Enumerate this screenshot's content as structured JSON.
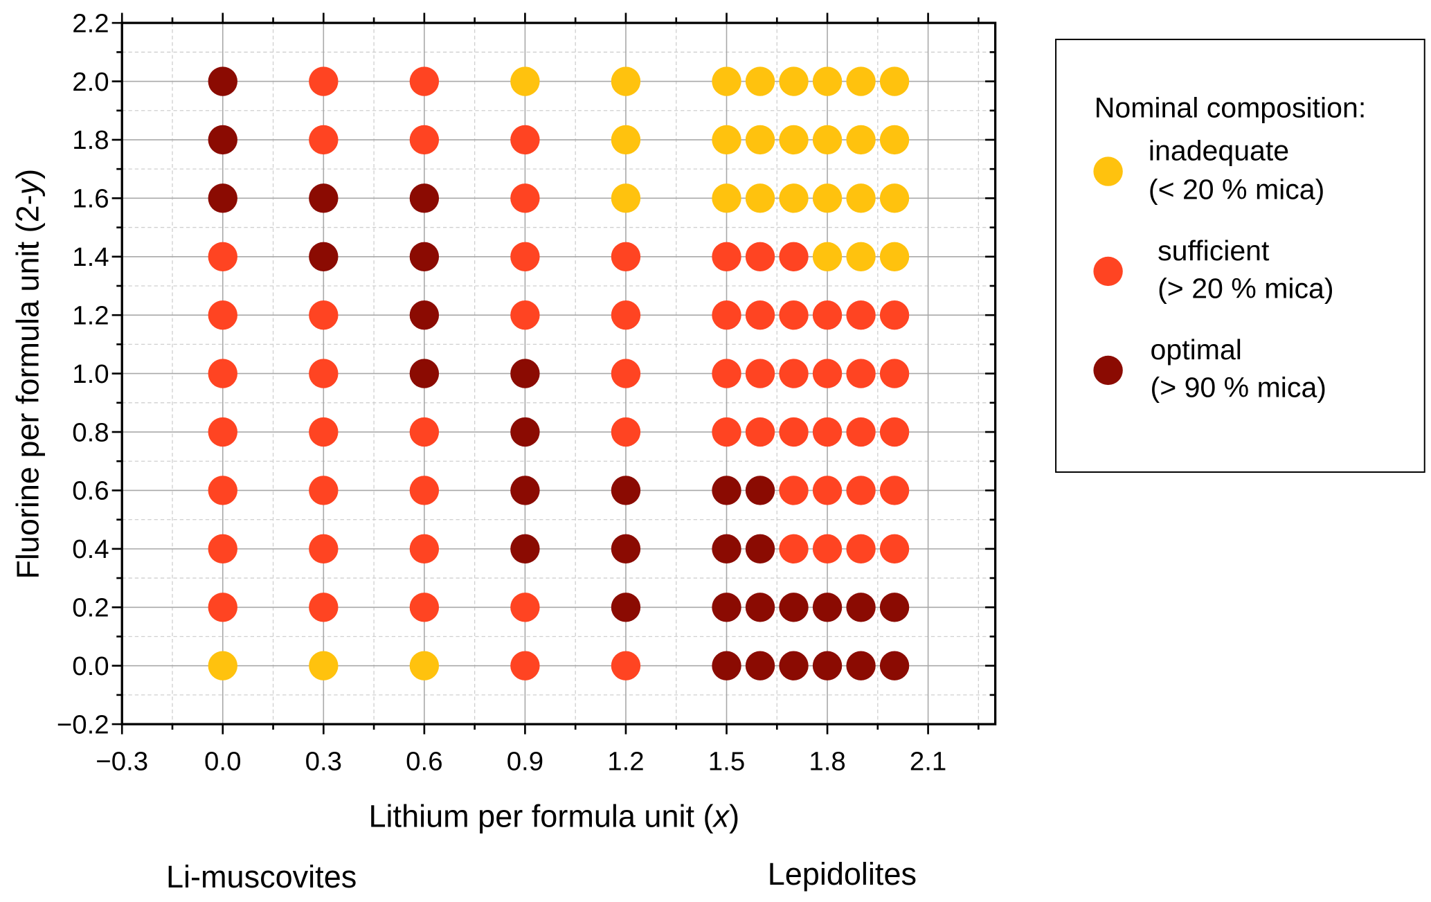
{
  "chart_data": {
    "type": "scatter",
    "title": "",
    "xlabel": "Lithium per formula unit (",
    "xlabel_var": "x",
    "xlabel_end": ")",
    "ylabel": "Fluorine per formula unit (2-",
    "ylabel_var": "y",
    "ylabel_end": ")",
    "xlim": [
      -0.3,
      2.3
    ],
    "ylim": [
      -0.2,
      2.2
    ],
    "xticks": [
      "−0.3",
      "0.0",
      "0.3",
      "0.6",
      "0.9",
      "1.2",
      "1.5",
      "1.8",
      "2.1"
    ],
    "xtick_values": [
      -0.3,
      0,
      0.3,
      0.6,
      0.9,
      1.2,
      1.5,
      1.8,
      2.1
    ],
    "yticks": [
      "−0.2",
      "0.0",
      "0.2",
      "0.4",
      "0.6",
      "0.8",
      "1.0",
      "1.2",
      "1.4",
      "1.6",
      "1.8",
      "2.0",
      "2.2"
    ],
    "ytick_values": [
      -0.2,
      0,
      0.2,
      0.4,
      0.6,
      0.8,
      1.0,
      1.2,
      1.4,
      1.6,
      1.8,
      2.0,
      2.2
    ],
    "grid": true,
    "legend_placement": "right, outside",
    "legend_title": "Nominal composition:",
    "categories": [
      {
        "key": "I",
        "label1": "inadequate",
        "label2": "(< 20 % mica)",
        "color": "#FFC20E"
      },
      {
        "key": "S",
        "label1": "sufficient",
        "label2": "(> 20 % mica)",
        "color": "#FF4422"
      },
      {
        "key": "O",
        "label1": "optimal",
        "label2": "(> 90 % mica)",
        "color": "#8B0B02"
      }
    ],
    "x": [
      0.0,
      0.3,
      0.6,
      0.9,
      1.2,
      1.5,
      1.6,
      1.7,
      1.8,
      1.9,
      2.0
    ],
    "rows": [
      {
        "y": 2.0,
        "classes": [
          "O",
          "S",
          "S",
          "I",
          "I",
          "I",
          "I",
          "I",
          "I",
          "I",
          "I"
        ]
      },
      {
        "y": 1.8,
        "classes": [
          "O",
          "S",
          "S",
          "S",
          "I",
          "I",
          "I",
          "I",
          "I",
          "I",
          "I"
        ]
      },
      {
        "y": 1.6,
        "classes": [
          "O",
          "O",
          "O",
          "S",
          "I",
          "I",
          "I",
          "I",
          "I",
          "I",
          "I"
        ]
      },
      {
        "y": 1.4,
        "classes": [
          "S",
          "O",
          "O",
          "S",
          "S",
          "S",
          "S",
          "S",
          "I",
          "I",
          "I"
        ]
      },
      {
        "y": 1.2,
        "classes": [
          "S",
          "S",
          "O",
          "S",
          "S",
          "S",
          "S",
          "S",
          "S",
          "S",
          "S"
        ]
      },
      {
        "y": 1.0,
        "classes": [
          "S",
          "S",
          "O",
          "O",
          "S",
          "S",
          "S",
          "S",
          "S",
          "S",
          "S"
        ]
      },
      {
        "y": 0.8,
        "classes": [
          "S",
          "S",
          "S",
          "O",
          "S",
          "S",
          "S",
          "S",
          "S",
          "S",
          "S"
        ]
      },
      {
        "y": 0.6,
        "classes": [
          "S",
          "S",
          "S",
          "O",
          "O",
          "O",
          "O",
          "S",
          "S",
          "S",
          "S"
        ]
      },
      {
        "y": 0.4,
        "classes": [
          "S",
          "S",
          "S",
          "O",
          "O",
          "O",
          "O",
          "S",
          "S",
          "S",
          "S"
        ]
      },
      {
        "y": 0.2,
        "classes": [
          "S",
          "S",
          "S",
          "S",
          "O",
          "O",
          "O",
          "O",
          "O",
          "O",
          "O"
        ]
      },
      {
        "y": 0.0,
        "classes": [
          "I",
          "I",
          "I",
          "S",
          "S",
          "O",
          "O",
          "O",
          "O",
          "O",
          "O"
        ]
      }
    ],
    "annotations": [
      "Li-muscovites",
      "Lepidolites"
    ]
  }
}
